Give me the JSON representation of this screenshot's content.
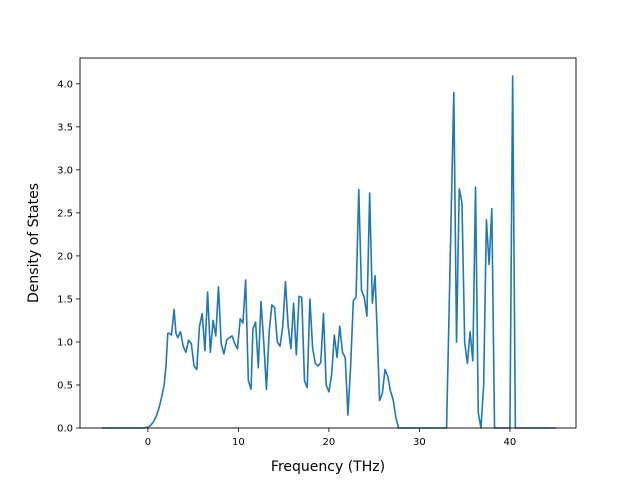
{
  "chart_data": {
    "type": "line",
    "title": "",
    "xlabel": "Frequency (THz)",
    "ylabel": "Density of States",
    "xlim": [
      -7.5,
      47.3
    ],
    "ylim": [
      0.0,
      4.3
    ],
    "x_ticks": [
      0,
      10,
      20,
      30,
      40
    ],
    "y_ticks": [
      0.0,
      0.5,
      1.0,
      1.5,
      2.0,
      2.5,
      3.0,
      3.5,
      4.0
    ],
    "x_tick_labels": [
      "0",
      "10",
      "20",
      "30",
      "40"
    ],
    "y_tick_labels": [
      "0.0",
      "0.5",
      "1.0",
      "1.5",
      "2.0",
      "2.5",
      "3.0",
      "3.5",
      "4.0"
    ],
    "grid": false,
    "line_color": "#1f77b4",
    "series": [
      {
        "x": [
          -5.0,
          -4.0,
          -3.0,
          -2.0,
          -1.0,
          -0.5,
          0.0,
          0.3,
          0.6,
          0.9,
          1.2,
          1.5,
          1.8,
          2.0,
          2.2,
          2.4,
          2.6,
          2.9,
          3.1,
          3.3,
          3.6,
          3.9,
          4.2,
          4.5,
          4.8,
          5.1,
          5.4,
          5.7,
          6.0,
          6.3,
          6.6,
          6.9,
          7.2,
          7.5,
          7.8,
          8.1,
          8.4,
          8.7,
          9.0,
          9.3,
          9.6,
          9.9,
          10.2,
          10.5,
          10.8,
          11.1,
          11.4,
          11.6,
          11.9,
          12.2,
          12.5,
          12.8,
          13.1,
          13.4,
          13.7,
          14.0,
          14.3,
          14.6,
          14.9,
          15.2,
          15.5,
          15.8,
          16.1,
          16.4,
          16.7,
          17.0,
          17.3,
          17.6,
          17.9,
          18.2,
          18.5,
          18.8,
          19.1,
          19.4,
          19.7,
          20.0,
          20.3,
          20.6,
          20.9,
          21.2,
          21.5,
          21.8,
          22.1,
          22.4,
          22.7,
          23.0,
          23.3,
          23.6,
          23.9,
          24.2,
          24.5,
          24.8,
          25.1,
          25.3,
          25.6,
          25.9,
          26.2,
          26.5,
          26.8,
          27.1,
          27.4,
          27.7,
          28.0,
          28.3,
          28.6,
          29.0,
          30.0,
          31.0,
          32.0,
          33.0,
          33.8,
          34.1,
          34.4,
          34.7,
          35.0,
          35.3,
          35.6,
          35.9,
          36.2,
          36.5,
          36.8,
          37.1,
          37.4,
          37.7,
          38.0,
          38.3,
          38.6,
          38.9,
          39.5,
          40.0,
          40.3,
          40.6,
          40.9,
          41.2,
          42.0,
          43.0,
          44.0,
          45.0
        ],
        "y": [
          0.0,
          0.0,
          0.0,
          0.0,
          0.0,
          0.0,
          0.01,
          0.03,
          0.07,
          0.13,
          0.22,
          0.35,
          0.5,
          0.72,
          1.1,
          1.1,
          1.08,
          1.38,
          1.1,
          1.05,
          1.12,
          0.95,
          0.88,
          1.02,
          0.98,
          0.72,
          0.68,
          1.18,
          1.33,
          0.9,
          1.58,
          0.88,
          1.25,
          1.07,
          1.64,
          0.98,
          0.86,
          1.02,
          1.05,
          1.07,
          0.98,
          0.92,
          1.27,
          1.22,
          1.72,
          0.55,
          0.45,
          1.15,
          1.23,
          0.7,
          1.47,
          1.0,
          0.45,
          1.12,
          1.43,
          1.4,
          1.0,
          0.95,
          1.18,
          1.7,
          1.18,
          0.92,
          1.45,
          0.85,
          1.53,
          1.52,
          0.55,
          0.47,
          1.5,
          0.93,
          0.75,
          0.72,
          0.76,
          1.33,
          0.5,
          0.42,
          0.62,
          1.08,
          0.82,
          1.18,
          0.88,
          0.82,
          0.15,
          0.72,
          1.48,
          1.52,
          2.77,
          1.6,
          1.52,
          1.3,
          2.73,
          1.45,
          1.77,
          1.2,
          0.32,
          0.4,
          0.68,
          0.6,
          0.43,
          0.33,
          0.12,
          0.0,
          0.0,
          0.0,
          0.0,
          0.0,
          0.0,
          0.0,
          0.0,
          0.0,
          3.9,
          1.0,
          2.78,
          2.62,
          1.0,
          0.75,
          1.12,
          0.78,
          2.8,
          0.18,
          0.0,
          0.5,
          2.42,
          1.9,
          2.55,
          0.0,
          0.0,
          0.0,
          0.0,
          0.0,
          4.09,
          0.0,
          0.0,
          0.0,
          0.0,
          0.0,
          0.0,
          0.0
        ]
      }
    ]
  }
}
